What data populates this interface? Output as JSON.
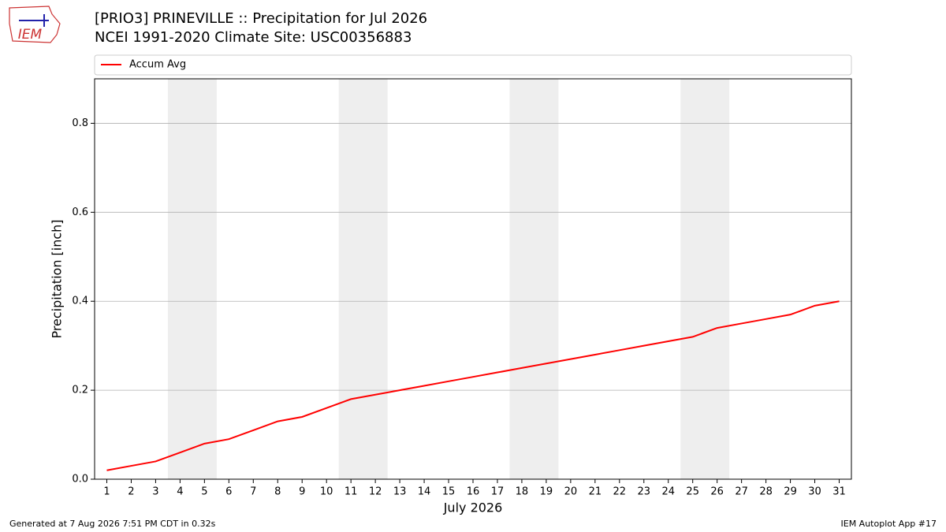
{
  "logo_text": "IEM",
  "chart_data": {
    "type": "line",
    "title": "[PRIO3] PRINEVILLE :: Precipitation for Jul 2026",
    "subtitle": "NCEI 1991-2020 Climate Site: USC00356883",
    "x_label": "July 2026",
    "y_label": "Precipitation [inch]",
    "x": [
      1,
      2,
      3,
      4,
      5,
      6,
      7,
      8,
      9,
      10,
      11,
      12,
      13,
      14,
      15,
      16,
      17,
      18,
      19,
      20,
      21,
      22,
      23,
      24,
      25,
      26,
      27,
      28,
      29,
      30,
      31
    ],
    "series": [
      {
        "name": "Accum Avg",
        "color": "#ff0000",
        "values": [
          0.02,
          0.03,
          0.04,
          0.06,
          0.08,
          0.09,
          0.11,
          0.13,
          0.14,
          0.16,
          0.18,
          0.19,
          0.2,
          0.21,
          0.22,
          0.23,
          0.24,
          0.25,
          0.26,
          0.27,
          0.28,
          0.29,
          0.3,
          0.31,
          0.32,
          0.34,
          0.35,
          0.36,
          0.37,
          0.39,
          0.4
        ]
      }
    ],
    "xlim": [
      0.5,
      31.5
    ],
    "xticks": [
      1,
      2,
      3,
      4,
      5,
      6,
      7,
      8,
      9,
      10,
      11,
      12,
      13,
      14,
      15,
      16,
      17,
      18,
      19,
      20,
      21,
      22,
      23,
      24,
      25,
      26,
      27,
      28,
      29,
      30,
      31
    ],
    "ylim": [
      0,
      0.9
    ],
    "yticks": [
      {
        "value": 0,
        "label": "0.0"
      },
      0.2,
      0.4,
      0.6,
      0.8
    ],
    "grid": true,
    "legend": "top",
    "shaded_ranges": [
      [
        3.5,
        5.5
      ],
      [
        10.5,
        12.5
      ],
      [
        17.5,
        19.5
      ],
      [
        24.5,
        26.5
      ]
    ],
    "shade_color": "#eeeeee"
  },
  "footer": {
    "left": "Generated at 7 Aug 2026 7:51 PM CDT in 0.32s",
    "right": "IEM Autoplot App #17"
  }
}
